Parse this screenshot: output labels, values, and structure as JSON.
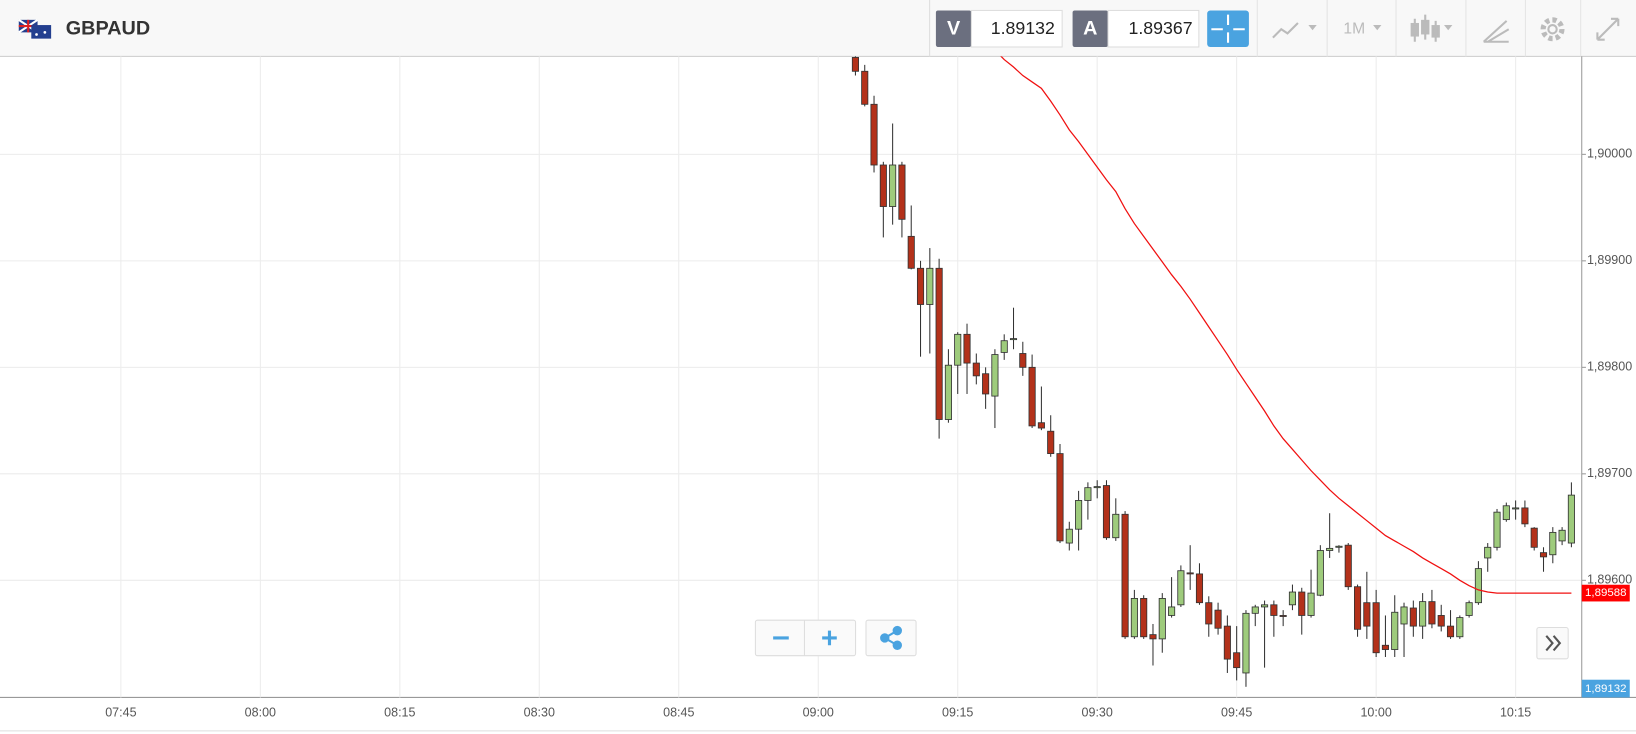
{
  "header": {
    "symbol": "GBPAUD",
    "bid_label": "V",
    "bid": "1.89132",
    "ask_label": "A",
    "ask": "1.89367",
    "timeframe": "1M"
  },
  "chart_data": {
    "type": "candlestick",
    "x": [
      "09:04",
      "09:05",
      "09:06",
      "09:07",
      "09:08",
      "09:09",
      "09:10",
      "09:11",
      "09:12",
      "09:13",
      "09:14",
      "09:15",
      "09:16",
      "09:17",
      "09:18",
      "09:19",
      "09:20",
      "09:21",
      "09:22",
      "09:23",
      "09:24",
      "09:25",
      "09:26",
      "09:27",
      "09:28",
      "09:29",
      "09:30",
      "09:31",
      "09:32",
      "09:33",
      "09:34",
      "09:35",
      "09:36",
      "09:37",
      "09:38",
      "09:39",
      "09:40",
      "09:41",
      "09:42",
      "09:43",
      "09:44",
      "09:45",
      "09:46",
      "09:47",
      "09:48",
      "09:49",
      "09:50",
      "09:51",
      "09:52",
      "09:53",
      "09:54",
      "09:55",
      "09:56",
      "09:57",
      "09:58",
      "09:59",
      "10:00",
      "10:01",
      "10:02",
      "10:03",
      "10:04",
      "10:05",
      "10:06",
      "10:07",
      "10:08",
      "10:09",
      "10:10",
      "10:11",
      "10:12",
      "10:13",
      "10:14",
      "10:15",
      "10:16",
      "10:17",
      "10:18",
      "10:19",
      "10:20",
      "10:21"
    ],
    "open": [
      1.90091,
      1.90078,
      1.90047,
      1.8999,
      1.89951,
      1.8999,
      1.89923,
      1.89893,
      1.89859,
      1.89893,
      1.89751,
      1.89802,
      1.89831,
      1.89804,
      1.89794,
      1.89773,
      1.89814,
      1.89826,
      1.89813,
      1.898,
      1.89748,
      1.8974,
      1.89719,
      1.89635,
      1.89648,
      1.89675,
      1.89687,
      1.89689,
      1.8964,
      1.89662,
      1.89547,
      1.89583,
      1.89549,
      1.89545,
      1.89567,
      1.89577,
      1.89607,
      1.89606,
      1.89579,
      1.89572,
      1.89557,
      1.89532,
      1.89513,
      1.89569,
      1.89575,
      1.89577,
      1.89567,
      1.89577,
      1.89589,
      1.89567,
      1.89586,
      1.89628,
      1.89631,
      1.89633,
      1.89594,
      1.89579,
      1.89579,
      1.89539,
      1.89535,
      1.89559,
      1.89574,
      1.89557,
      1.8958,
      1.89567,
      1.89557,
      1.89547,
      1.89567,
      1.89579,
      1.89621,
      1.89631,
      1.89657,
      1.89667,
      1.89668,
      1.89649,
      1.89626,
      1.89624,
      1.89637,
      1.89635
    ],
    "high": [
      1.90096,
      1.90084,
      1.90055,
      1.89993,
      1.90029,
      1.89993,
      1.89952,
      1.899,
      1.89912,
      1.89902,
      1.89817,
      1.89833,
      1.89841,
      1.89813,
      1.898,
      1.89817,
      1.89831,
      1.89856,
      1.89824,
      1.89812,
      1.89782,
      1.89755,
      1.89728,
      1.89655,
      1.89684,
      1.89692,
      1.89694,
      1.89694,
      1.89677,
      1.89665,
      1.89591,
      1.89586,
      1.89559,
      1.89588,
      1.89603,
      1.89614,
      1.89633,
      1.89616,
      1.89585,
      1.89579,
      1.89567,
      1.89557,
      1.89572,
      1.89577,
      1.89581,
      1.89581,
      1.89572,
      1.89596,
      1.89593,
      1.8961,
      1.89633,
      1.89663,
      1.89633,
      1.89635,
      1.89596,
      1.89608,
      1.89591,
      1.89567,
      1.89586,
      1.89579,
      1.89581,
      1.89588,
      1.89591,
      1.89577,
      1.89572,
      1.89567,
      1.89581,
      1.89618,
      1.89635,
      1.89667,
      1.89673,
      1.89675,
      1.89675,
      1.8965,
      1.89631,
      1.8965,
      1.8965,
      1.89692
    ],
    "low": [
      1.90074,
      1.90045,
      1.89983,
      1.89922,
      1.89934,
      1.89922,
      1.89892,
      1.8981,
      1.89813,
      1.89733,
      1.89748,
      1.89775,
      1.89775,
      1.89784,
      1.89761,
      1.89743,
      1.89807,
      1.89817,
      1.89792,
      1.89743,
      1.89741,
      1.89716,
      1.89635,
      1.89628,
      1.89628,
      1.89657,
      1.89677,
      1.89638,
      1.89637,
      1.89545,
      1.89545,
      1.89545,
      1.8952,
      1.89532,
      1.89565,
      1.89575,
      1.89591,
      1.89577,
      1.89547,
      1.89549,
      1.89513,
      1.89506,
      1.895,
      1.89557,
      1.89518,
      1.89547,
      1.89557,
      1.89572,
      1.89549,
      1.89565,
      1.89585,
      1.89621,
      1.89626,
      1.89591,
      1.89547,
      1.89545,
      1.89528,
      1.89528,
      1.89528,
      1.89528,
      1.89547,
      1.89545,
      1.89555,
      1.89552,
      1.89545,
      1.89545,
      1.89565,
      1.89577,
      1.89608,
      1.89628,
      1.89655,
      1.89657,
      1.8965,
      1.89628,
      1.89608,
      1.89616,
      1.89633,
      1.89631
    ],
    "close": [
      1.90078,
      1.90047,
      1.8999,
      1.89951,
      1.8999,
      1.89939,
      1.89893,
      1.89859,
      1.89893,
      1.89751,
      1.89802,
      1.89831,
      1.89804,
      1.89792,
      1.89775,
      1.89812,
      1.89825,
      1.89827,
      1.898,
      1.89745,
      1.89743,
      1.89719,
      1.89637,
      1.89648,
      1.89675,
      1.89687,
      1.89688,
      1.8964,
      1.89662,
      1.89547,
      1.89583,
      1.89547,
      1.89545,
      1.89583,
      1.89575,
      1.89609,
      1.89606,
      1.89579,
      1.89559,
      1.89555,
      1.89526,
      1.89518,
      1.89569,
      1.89575,
      1.89577,
      1.89567,
      1.89566,
      1.89589,
      1.89567,
      1.89588,
      1.89628,
      1.8963,
      1.89632,
      1.89594,
      1.89554,
      1.89557,
      1.89532,
      1.89535,
      1.8957,
      1.89575,
      1.89557,
      1.8958,
      1.89559,
      1.89557,
      1.89547,
      1.89565,
      1.89579,
      1.89611,
      1.89631,
      1.89664,
      1.8967,
      1.89668,
      1.89653,
      1.89631,
      1.89622,
      1.89645,
      1.89647,
      1.8968
    ],
    "up_color": "#9ecb7c",
    "down_color": "#b3311a",
    "line_color": "#f01010",
    "line_values": [
      null,
      null,
      null,
      null,
      null,
      null,
      null,
      null,
      null,
      null,
      null,
      null,
      null,
      null,
      null,
      1.90098,
      1.90089,
      1.90082,
      1.90074,
      1.90068,
      1.90062,
      1.9005,
      1.90037,
      1.90023,
      1.90012,
      1.9,
      1.89988,
      1.89976,
      1.89965,
      1.89949,
      1.89935,
      1.89923,
      1.89911,
      1.89899,
      1.89887,
      1.89876,
      1.89864,
      1.89851,
      1.89838,
      1.89825,
      1.89812,
      1.89798,
      1.89785,
      1.89772,
      1.89759,
      1.89745,
      1.89733,
      1.89723,
      1.89713,
      1.89703,
      1.89694,
      1.89685,
      1.89677,
      1.8967,
      1.89663,
      1.89656,
      1.89649,
      1.89642,
      1.89637,
      1.89632,
      1.89627,
      1.89621,
      1.89616,
      1.89611,
      1.89606,
      1.896,
      1.89595,
      1.89591,
      1.89589,
      1.89588,
      1.89588,
      1.89588,
      1.89588,
      1.89588,
      1.89588,
      1.89588,
      1.89588,
      1.89588
    ],
    "line_badge": "1,89588",
    "bid_badge": "1,89132",
    "xlim": [
      "07:32",
      "10:22"
    ],
    "xticks": [
      "07:45",
      "08:00",
      "08:15",
      "08:30",
      "08:45",
      "09:00",
      "09:15",
      "09:30",
      "09:45",
      "10:00",
      "10:15"
    ],
    "ylim": [
      1.8949,
      1.90092
    ],
    "yticks": [
      {
        "value": 1.9,
        "label": "1,90000"
      },
      {
        "value": 1.899,
        "label": "1,89900"
      },
      {
        "value": 1.898,
        "label": "1,89800"
      },
      {
        "value": 1.897,
        "label": "1,89700"
      },
      {
        "value": 1.896,
        "label": "1,89600"
      }
    ],
    "grid": true
  }
}
